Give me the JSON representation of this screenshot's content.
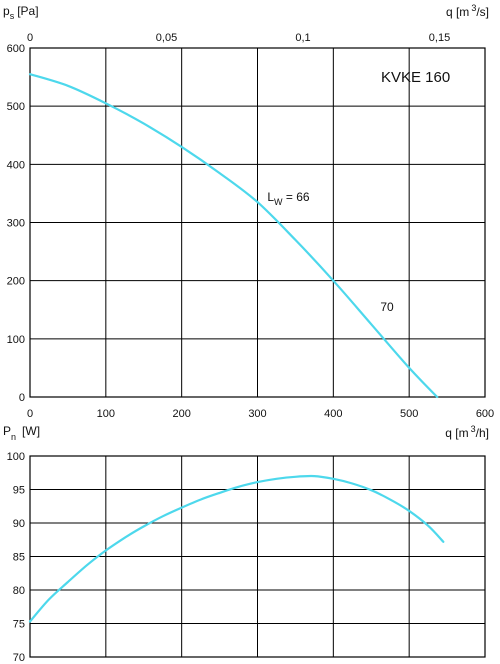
{
  "chart_data": [
    {
      "type": "line",
      "model_label": "KVKE 160",
      "ylabel_main": "p",
      "ylabel_sub": "s",
      "ylabel_unit": "[Pa]",
      "xlabel_top_main": "q [m",
      "xlabel_top_sup": "3",
      "xlabel_top_unit": "/s]",
      "xlabel_main": "q [m",
      "xlabel_sup": "3",
      "xlabel_unit": "/h]",
      "xlim": [
        0,
        600
      ],
      "ylim": [
        0,
        600
      ],
      "x_ticks": [
        "0",
        "100",
        "200",
        "300",
        "400",
        "500",
        "600"
      ],
      "y_ticks": [
        "0",
        "100",
        "200",
        "300",
        "400",
        "500",
        "600"
      ],
      "top_ticks": [
        {
          "q": 0,
          "label": "0"
        },
        {
          "q": 0.05,
          "label": "0,05"
        },
        {
          "q": 0.1,
          "label": "0,1"
        },
        {
          "q": 0.15,
          "label": "0,15"
        }
      ],
      "grid": true,
      "series": [
        {
          "x": [
            0,
            50,
            100,
            150,
            200,
            250,
            300,
            350,
            400,
            450,
            500,
            537
          ],
          "y": [
            555,
            535,
            505,
            470,
            430,
            385,
            335,
            270,
            200,
            125,
            50,
            0
          ]
        }
      ],
      "annotations": [
        {
          "main": "L",
          "sub": "W",
          "rest": " = 66",
          "x": 313,
          "y": 337
        },
        {
          "main": "70",
          "x": 462,
          "y": 148
        }
      ]
    },
    {
      "type": "line",
      "ylabel_main": "P",
      "ylabel_sub": "n",
      "ylabel_unit": "[W]",
      "xlim": [
        0,
        600
      ],
      "ylim": [
        70,
        100
      ],
      "y_ticks": [
        "70",
        "75",
        "80",
        "85",
        "90",
        "95",
        "100"
      ],
      "grid": true,
      "series": [
        {
          "x": [
            0,
            25,
            50,
            75,
            100,
            125,
            150,
            175,
            200,
            225,
            250,
            275,
            300,
            325,
            350,
            375,
            400,
            425,
            450,
            475,
            500,
            525,
            545
          ],
          "y": [
            75.3,
            78.6,
            81.2,
            83.7,
            85.9,
            87.8,
            89.5,
            91.0,
            92.3,
            93.5,
            94.5,
            95.4,
            96.1,
            96.6,
            96.9,
            97.0,
            96.6,
            95.9,
            94.9,
            93.5,
            91.8,
            89.6,
            87.2
          ]
        }
      ]
    }
  ]
}
